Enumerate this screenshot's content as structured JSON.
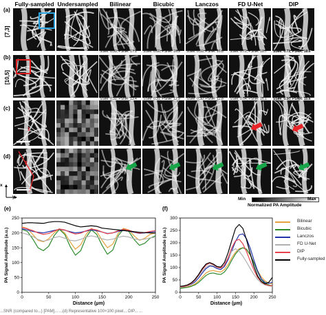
{
  "figure": {
    "columns": [
      "Fully-sampled",
      "Undersampled",
      "Bilinear",
      "Bicubic",
      "Lanczos",
      "FD U-Net",
      "DIP"
    ],
    "rows": [
      {
        "tag": "(a)",
        "label": "[7,3]"
      },
      {
        "tag": "(b)",
        "label": "[10,5]"
      },
      {
        "tag": "(c)",
        "label": ""
      },
      {
        "tag": "(d)",
        "label": ""
      }
    ],
    "metrics_a": [
      "SSIM: 0.59; PSNR: 17.1",
      "SSIM: 0.60; PSNR: 16.9",
      "SSIM: 0.59; PSNR: 16.8",
      "SSIM: 0.72; PSNR: 18.7",
      "SSIM: 0.71; PSNR: 18.6"
    ],
    "metrics_b": [
      "SSIM: 0.31; PSNR: 13.4",
      "SSIM: 0.31; PSNR: 12.9",
      "SSIM: 0.30; PSNR: 12.8",
      "SSIM: 0.54; PSNR: 16.1",
      "SSIM: 0.50; PSNR: 15.6"
    ],
    "colorbar": {
      "min": "Min",
      "label": "Normalized PA Amplitude",
      "max": "Max"
    },
    "axes_x": "x",
    "axes_y": "y",
    "line_labels": [
      "1",
      "2"
    ],
    "accent_colors": {
      "box_a": "#29a3e0",
      "box_b": "#e02020",
      "arrow_red": "#e8262a",
      "arrow_green": "#19a64a"
    }
  },
  "plot_e": {
    "tag": "(e)",
    "chart_data": {
      "type": "line",
      "xlabel": "Distance (μm)",
      "ylabel": "PA Signal Amplitude (a.u.)",
      "xlim": [
        0,
        250
      ],
      "ylim": [
        0,
        250
      ],
      "xticks": [
        0,
        50,
        100,
        150,
        200,
        250
      ],
      "yticks": [
        0,
        50,
        100,
        150,
        200,
        250
      ],
      "x": [
        0,
        10,
        20,
        30,
        40,
        50,
        60,
        70,
        80,
        90,
        100,
        110,
        120,
        130,
        140,
        150,
        160,
        170,
        180,
        190,
        200,
        210,
        220,
        230,
        240,
        250
      ],
      "series": [
        {
          "name": "Bilinear",
          "color": "#e6a23c",
          "values": [
            220,
            215,
            195,
            175,
            170,
            180,
            200,
            214,
            200,
            170,
            145,
            160,
            195,
            215,
            205,
            175,
            150,
            162,
            198,
            215,
            210,
            190,
            175,
            182,
            195,
            200
          ]
        },
        {
          "name": "Bicubic",
          "color": "#2e8b2e",
          "values": [
            212,
            205,
            180,
            150,
            140,
            155,
            190,
            212,
            195,
            155,
            125,
            140,
            185,
            210,
            195,
            158,
            128,
            142,
            190,
            212,
            205,
            178,
            158,
            165,
            182,
            190
          ]
        },
        {
          "name": "Lanczos",
          "color": "#2233aa",
          "values": [
            214,
            210,
            205,
            202,
            200,
            204,
            208,
            212,
            209,
            204,
            200,
            202,
            206,
            210,
            207,
            203,
            198,
            200,
            205,
            208,
            206,
            202,
            198,
            200,
            203,
            205
          ]
        },
        {
          "name": "FD U-Net",
          "color": "#b0b0b0",
          "values": [
            200,
            195,
            188,
            178,
            172,
            176,
            184,
            188,
            182,
            175,
            173,
            178,
            186,
            190,
            186,
            180,
            176,
            179,
            185,
            189,
            186,
            180,
            177,
            179,
            183,
            185
          ]
        },
        {
          "name": "DIP",
          "color": "#e8424a",
          "values": [
            218,
            214,
            208,
            200,
            195,
            198,
            206,
            213,
            210,
            202,
            196,
            199,
            207,
            213,
            210,
            203,
            197,
            200,
            207,
            212,
            209,
            203,
            199,
            201,
            205,
            207
          ]
        },
        {
          "name": "Fully-sampled",
          "color": "#000000",
          "values": [
            232,
            234,
            234,
            233,
            232,
            236,
            238,
            238,
            236,
            230,
            224,
            220,
            222,
            224,
            222,
            216,
            214,
            212,
            210,
            208,
            206,
            204,
            202,
            201,
            200,
            200
          ]
        }
      ]
    }
  },
  "plot_f": {
    "tag": "(f)",
    "chart_data": {
      "type": "line",
      "xlabel": "Distance (μm)",
      "ylabel": "PA Signal Amplitude (a.u.)",
      "xlim": [
        0,
        250
      ],
      "ylim": [
        0,
        300
      ],
      "xticks": [
        0,
        50,
        100,
        150,
        200,
        250
      ],
      "yticks": [
        0,
        50,
        100,
        150,
        200,
        250,
        300
      ],
      "x": [
        0,
        10,
        20,
        30,
        40,
        50,
        60,
        70,
        80,
        90,
        100,
        110,
        120,
        130,
        140,
        150,
        160,
        170,
        180,
        190,
        200,
        210,
        220,
        230,
        240,
        250
      ],
      "series": [
        {
          "name": "Bilinear",
          "color": "#e6a23c",
          "values": [
            18,
            20,
            22,
            26,
            34,
            46,
            62,
            78,
            86,
            88,
            84,
            82,
            92,
            112,
            140,
            162,
            176,
            180,
            172,
            150,
            120,
            88,
            62,
            46,
            38,
            34
          ]
        },
        {
          "name": "Bicubic",
          "color": "#2e8b2e",
          "values": [
            16,
            18,
            20,
            24,
            30,
            40,
            54,
            68,
            76,
            78,
            74,
            72,
            82,
            102,
            130,
            155,
            172,
            180,
            174,
            152,
            118,
            82,
            52,
            36,
            30,
            26
          ]
        },
        {
          "name": "Lanczos",
          "color": "#2233aa",
          "values": [
            20,
            22,
            26,
            32,
            42,
            58,
            78,
            96,
            106,
            104,
            96,
            92,
            104,
            132,
            168,
            205,
            232,
            236,
            216,
            178,
            130,
            86,
            54,
            40,
            36,
            40
          ]
        },
        {
          "name": "FD U-Net",
          "color": "#b0b0b0",
          "values": [
            20,
            22,
            26,
            34,
            48,
            66,
            86,
            102,
            110,
            108,
            100,
            98,
            112,
            138,
            166,
            176,
            166,
            146,
            122,
            96,
            72,
            52,
            38,
            30,
            26,
            24
          ]
        },
        {
          "name": "DIP",
          "color": "#e8424a",
          "values": [
            22,
            24,
            28,
            36,
            50,
            70,
            92,
            110,
            118,
            112,
            102,
            98,
            110,
            140,
            180,
            208,
            214,
            196,
            164,
            126,
            90,
            60,
            42,
            32,
            28,
            26
          ]
        },
        {
          "name": "Fully-sampled",
          "color": "#000000",
          "values": [
            24,
            26,
            30,
            38,
            52,
            72,
            96,
            114,
            120,
            114,
            104,
            102,
            120,
            160,
            210,
            258,
            274,
            258,
            212,
            156,
            104,
            66,
            44,
            34,
            40,
            60
          ]
        }
      ]
    }
  },
  "caption": "...SNR (compared to...) [PAM]... ...(d) Representative 100×100 pixel... DIP... ..."
}
